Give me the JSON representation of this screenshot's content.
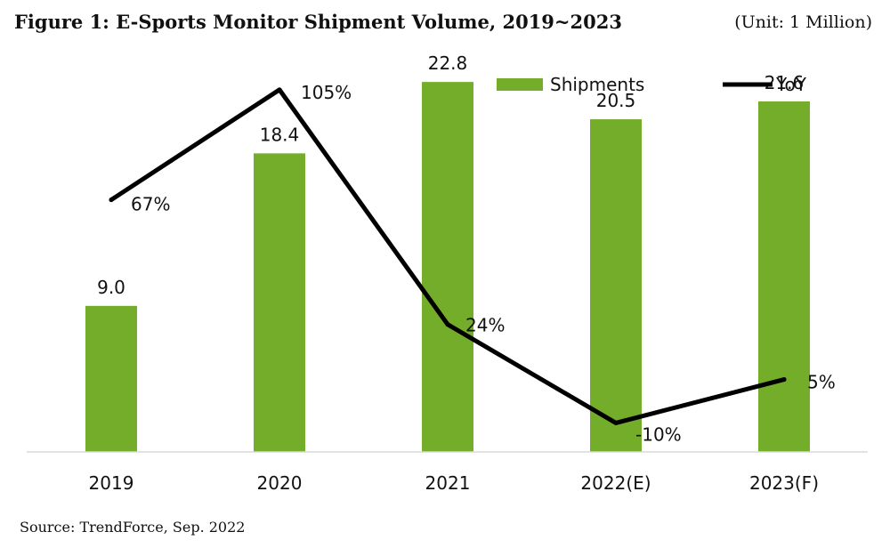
{
  "title": "Figure 1: E-Sports Monitor Shipment Volume, 2019~2023",
  "unit": "(Unit: 1 Million)",
  "source": "Source: TrendForce, Sep. 2022",
  "colors": {
    "bar": "#74ad2a",
    "line": "#000000"
  },
  "legend": {
    "bars": "Shipments",
    "line": "YoY",
    "position": "top-right"
  },
  "chart_data": {
    "type": "bar+line",
    "categories": [
      "2019",
      "2020",
      "2021",
      "2022(E)",
      "2023(F)"
    ],
    "series": [
      {
        "name": "Shipments",
        "type": "bar",
        "values": [
          9.0,
          18.4,
          22.8,
          20.5,
          21.6
        ],
        "labels": [
          "9.0",
          "18.4",
          "22.8",
          "20.5",
          "21.6"
        ]
      },
      {
        "name": "YoY",
        "type": "line",
        "values": [
          67,
          105,
          24,
          -10,
          5
        ],
        "labels": [
          "67%",
          "105%",
          "24%",
          "-10%",
          "5%"
        ]
      }
    ],
    "bar_ylim": [
      0,
      25
    ],
    "line_ylim": [
      -20,
      120
    ],
    "grid": false
  }
}
